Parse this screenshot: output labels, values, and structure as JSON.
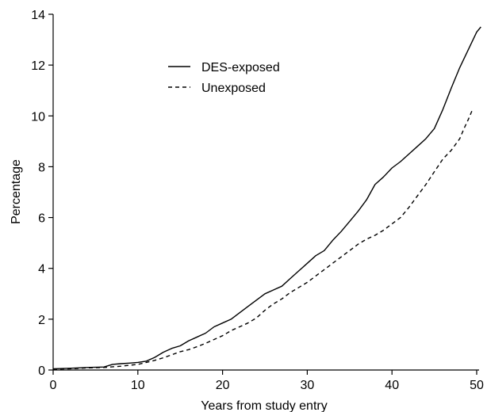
{
  "chart_data": {
    "type": "line",
    "title": "",
    "xlabel": "Years from study entry",
    "ylabel": "Percentage",
    "xlim": [
      0,
      50.5
    ],
    "ylim": [
      0,
      14
    ],
    "xticks": [
      0,
      10,
      20,
      30,
      40,
      50
    ],
    "yticks": [
      0,
      2,
      4,
      6,
      8,
      10,
      12,
      14
    ],
    "grid": false,
    "legend_position": "top-center",
    "series": [
      {
        "name": "DES-exposed",
        "line_style": "solid",
        "color": "#000000",
        "x": [
          0,
          2,
          4,
          6,
          7,
          8,
          9,
          10,
          11,
          12,
          13,
          14,
          15,
          16,
          17,
          18,
          19,
          20,
          21,
          22,
          23,
          24,
          25,
          26,
          27,
          28,
          29,
          30,
          31,
          32,
          33,
          34,
          35,
          36,
          37,
          38,
          39,
          40,
          41,
          42,
          43,
          44,
          45,
          46,
          47,
          48,
          49,
          50,
          50.5
        ],
        "y": [
          0.05,
          0.07,
          0.1,
          0.12,
          0.22,
          0.25,
          0.27,
          0.3,
          0.35,
          0.5,
          0.7,
          0.85,
          0.95,
          1.15,
          1.3,
          1.45,
          1.7,
          1.85,
          2.0,
          2.25,
          2.5,
          2.75,
          3.0,
          3.15,
          3.3,
          3.6,
          3.9,
          4.2,
          4.5,
          4.7,
          5.1,
          5.45,
          5.85,
          6.25,
          6.7,
          7.3,
          7.6,
          7.95,
          8.2,
          8.5,
          8.8,
          9.1,
          9.5,
          10.25,
          11.1,
          11.9,
          12.6,
          13.3,
          13.5
        ]
      },
      {
        "name": "Unexposed",
        "line_style": "dashed",
        "color": "#000000",
        "x": [
          0,
          2,
          4,
          6,
          8,
          10,
          11,
          12,
          13,
          14,
          15,
          16,
          17,
          18,
          19,
          20,
          21,
          22,
          23,
          24,
          25,
          26,
          27,
          28,
          29,
          30,
          31,
          32,
          33,
          34,
          35,
          36,
          37,
          38,
          39,
          40,
          41,
          42,
          43,
          44,
          45,
          46,
          47,
          48,
          48.5,
          49,
          49.5
        ],
        "y": [
          0.03,
          0.05,
          0.08,
          0.1,
          0.15,
          0.22,
          0.3,
          0.38,
          0.48,
          0.6,
          0.72,
          0.8,
          0.92,
          1.05,
          1.2,
          1.35,
          1.55,
          1.7,
          1.85,
          2.05,
          2.35,
          2.6,
          2.8,
          3.05,
          3.25,
          3.45,
          3.7,
          3.95,
          4.2,
          4.45,
          4.7,
          4.95,
          5.15,
          5.3,
          5.5,
          5.75,
          6.0,
          6.4,
          6.85,
          7.3,
          7.8,
          8.3,
          8.65,
          9.1,
          9.5,
          9.85,
          10.25
        ]
      }
    ]
  }
}
